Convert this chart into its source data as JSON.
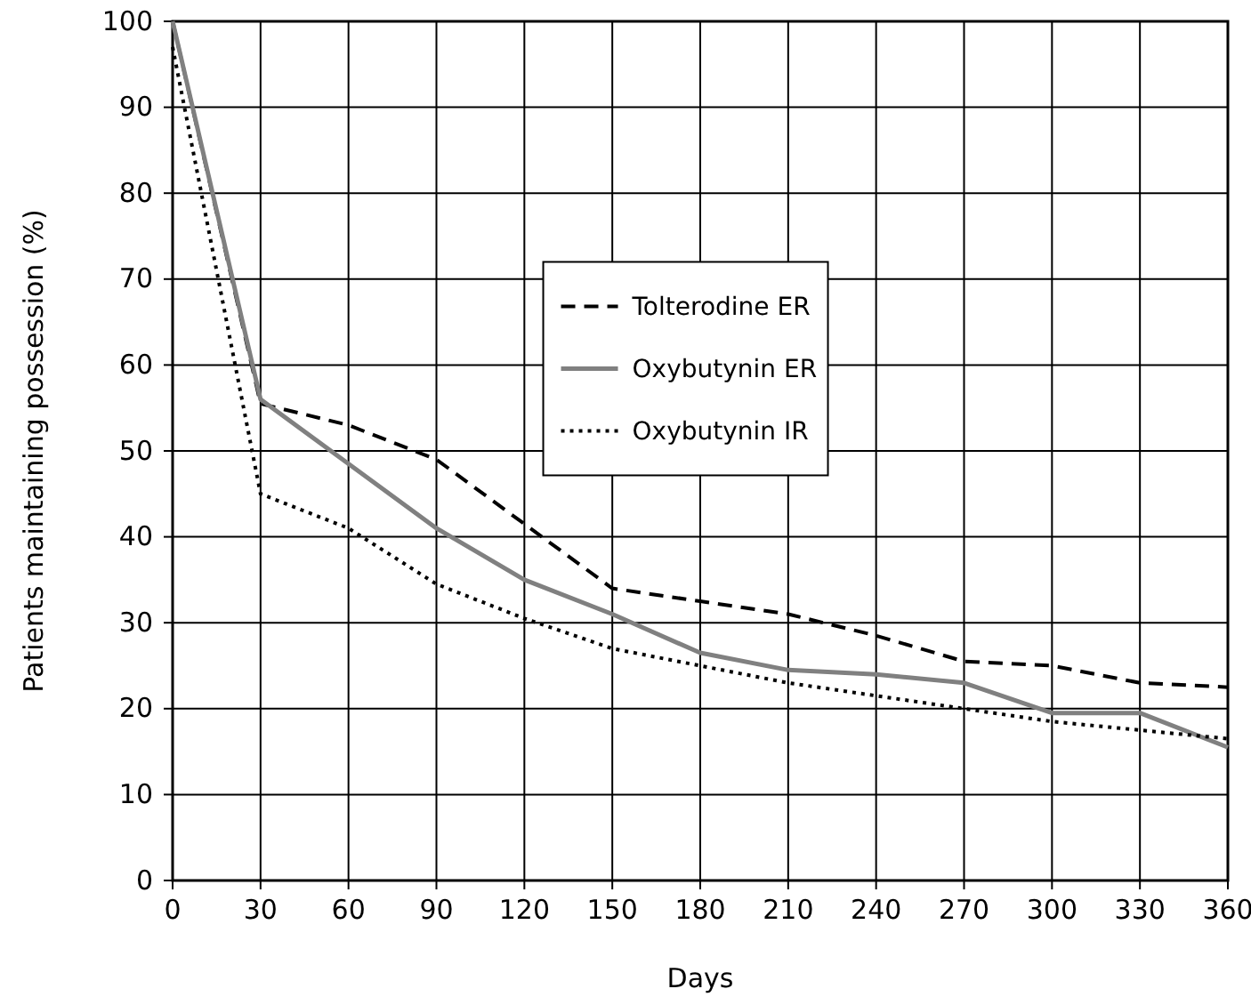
{
  "chart_data": {
    "type": "line",
    "xlabel": "Days",
    "ylabel": "Patients maintaining possession (%)",
    "x": [
      0,
      30,
      60,
      90,
      120,
      150,
      180,
      210,
      240,
      270,
      300,
      330,
      360
    ],
    "series": [
      {
        "name": "Tolterodine ER",
        "color": "#000000",
        "line_style": "dashed",
        "values": [
          100,
          55.5,
          53,
          49,
          41.5,
          34,
          32.5,
          31,
          28.5,
          25.5,
          25,
          23,
          22.5
        ]
      },
      {
        "name": "Oxybutynin ER",
        "color": "#808080",
        "line_style": "solid",
        "values": [
          100,
          56,
          48.5,
          41,
          35,
          31,
          26.5,
          24.5,
          24,
          23,
          19.5,
          19.5,
          15.5
        ]
      },
      {
        "name": "Oxybutynin IR",
        "color": "#000000",
        "line_style": "dotted",
        "values": [
          97,
          45,
          41,
          34.5,
          30.5,
          27,
          25,
          23,
          21.5,
          20,
          18.5,
          17.5,
          16.5
        ]
      }
    ],
    "xlim": [
      0,
      360
    ],
    "xticks": [
      0,
      30,
      60,
      90,
      120,
      150,
      180,
      210,
      240,
      270,
      300,
      330,
      360
    ],
    "ylim": [
      0,
      100
    ],
    "yticks": [
      0,
      10,
      20,
      30,
      40,
      50,
      60,
      70,
      80,
      90,
      100
    ],
    "grid": true,
    "legend": "center",
    "marker": "none"
  }
}
